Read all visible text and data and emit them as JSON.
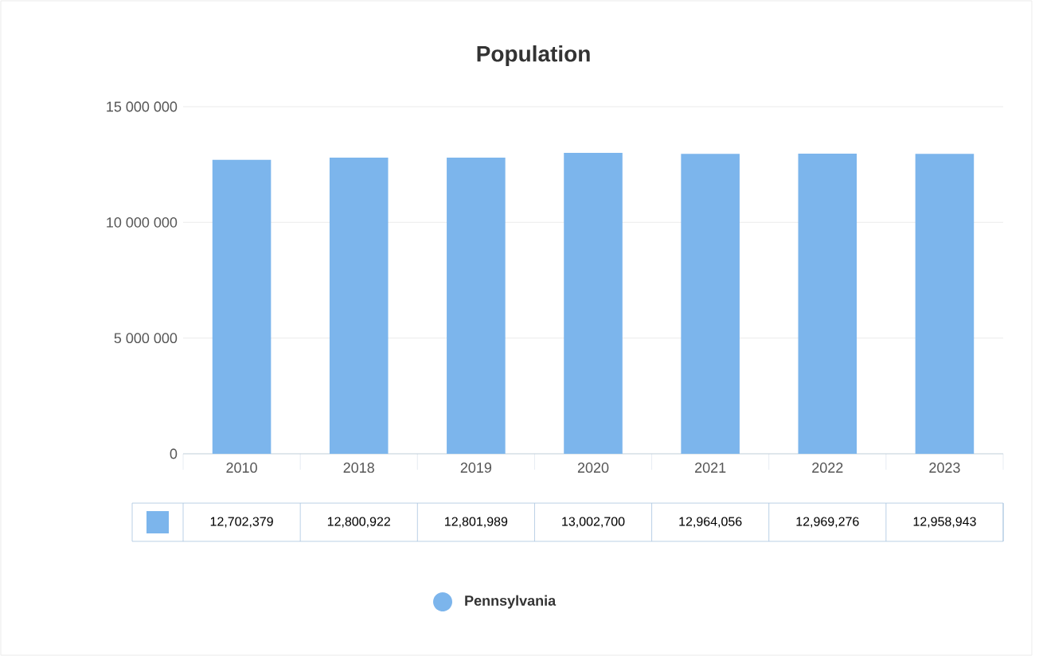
{
  "chart_data": {
    "type": "bar",
    "title": "Population",
    "categories": [
      "2010",
      "2018",
      "2019",
      "2020",
      "2021",
      "2022",
      "2023"
    ],
    "series": [
      {
        "name": "Pennsylvania",
        "color": "#7cb5ec",
        "values": [
          12702379,
          12800922,
          12801989,
          13002700,
          12964056,
          12969276,
          12958943
        ]
      }
    ],
    "value_labels": [
      "12,702,379",
      "12,800,922",
      "12,801,989",
      "13,002,700",
      "12,964,056",
      "12,969,276",
      "12,958,943"
    ],
    "ylim": [
      0,
      15000000
    ],
    "yticks": [
      {
        "value": 0,
        "label": "0"
      },
      {
        "value": 5000000,
        "label": "5 000 000"
      },
      {
        "value": 10000000,
        "label": "10 000 000"
      },
      {
        "value": 15000000,
        "label": "15 000 000"
      }
    ],
    "grid": "y",
    "legend": "bottom"
  }
}
